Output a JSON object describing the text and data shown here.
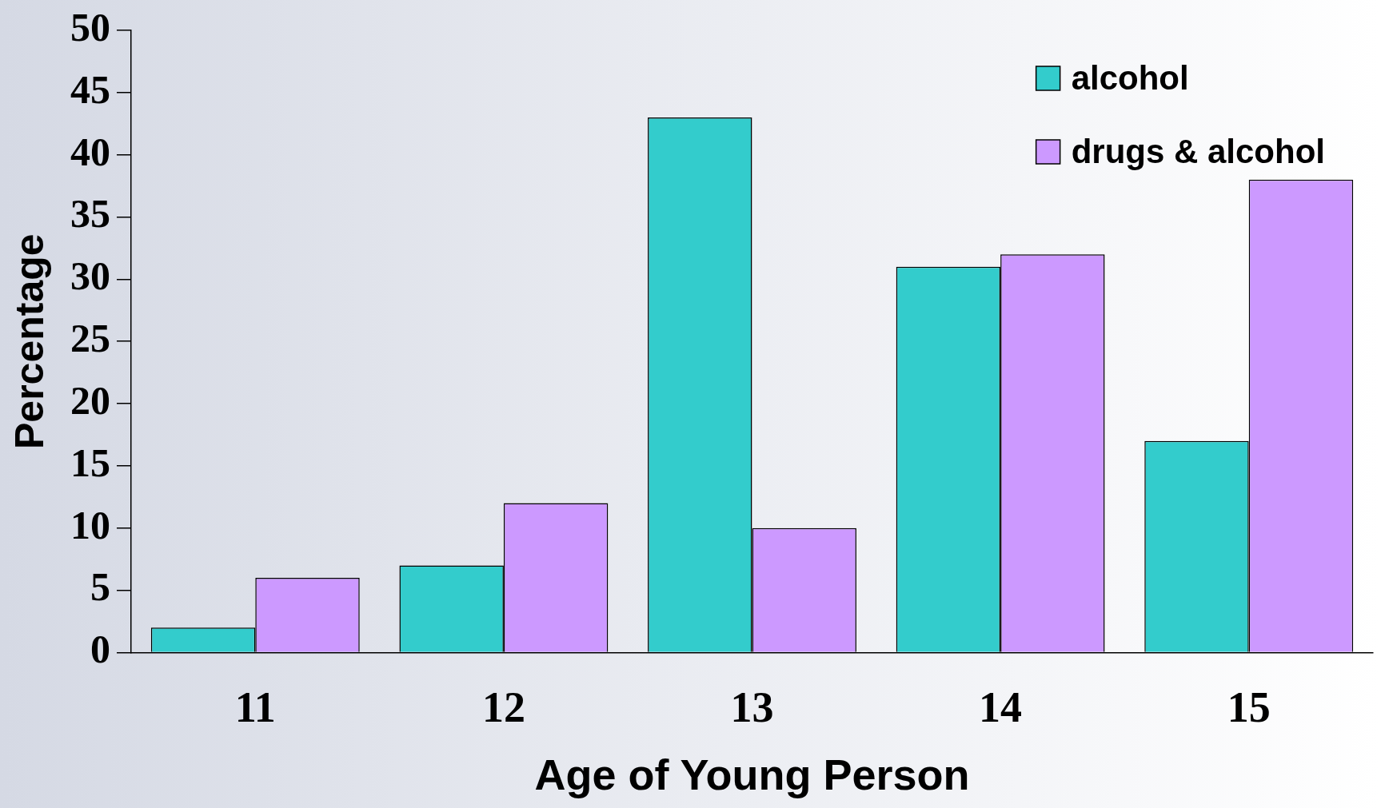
{
  "chart_data": {
    "type": "bar",
    "xlabel": "Age of Young Person",
    "ylabel": "Percentage",
    "categories": [
      "11",
      "12",
      "13",
      "14",
      "15"
    ],
    "series": [
      {
        "name": "alcohol",
        "color": "#33cccc",
        "values": [
          2,
          7,
          43,
          31,
          17
        ]
      },
      {
        "name": "drugs & alcohol",
        "color": "#cc99ff",
        "values": [
          6,
          12,
          10,
          32,
          38
        ]
      }
    ],
    "ylim": [
      0,
      50
    ],
    "yticks": [
      0,
      5,
      10,
      15,
      20,
      25,
      30,
      35,
      40,
      45,
      50
    ],
    "grid": false,
    "legend": "top right"
  }
}
